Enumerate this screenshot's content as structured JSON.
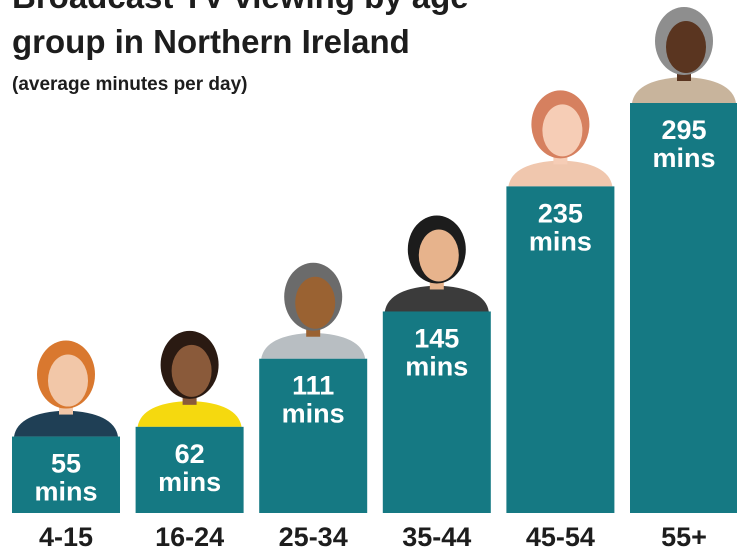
{
  "chart_data": {
    "type": "bar",
    "title_lines": [
      "Broadcast TV viewing by age",
      "group in Northern Ireland"
    ],
    "subtitle": "(average minutes per day)",
    "categories": [
      "4-15",
      "16-24",
      "25-34",
      "35-44",
      "45-54",
      "55+"
    ],
    "values": [
      55,
      62,
      111,
      145,
      235,
      295
    ],
    "value_labels": [
      "55 mins",
      "62 mins",
      "111 mins",
      "145 mins",
      "235 mins",
      "295 mins"
    ],
    "color": "#157983"
  }
}
